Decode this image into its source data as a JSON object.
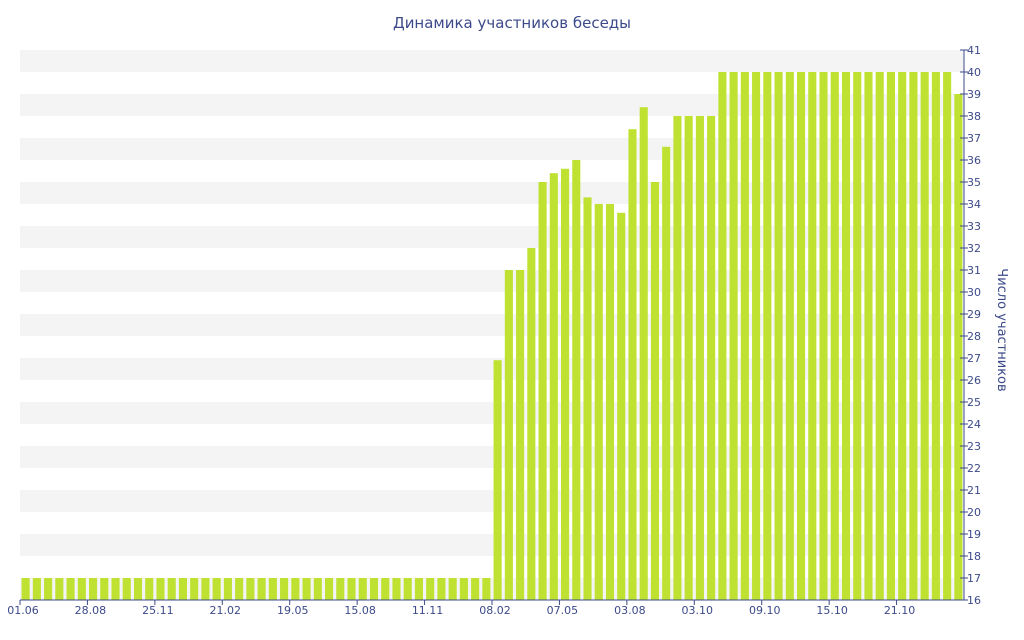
{
  "chart_data": {
    "type": "bar",
    "title": "Динамика участников беседы",
    "xlabel": "",
    "ylabel": "Число участников",
    "ylim": [
      16,
      41
    ],
    "yticks": [
      16,
      17,
      18,
      19,
      20,
      21,
      22,
      23,
      24,
      25,
      26,
      27,
      28,
      29,
      30,
      31,
      32,
      33,
      34,
      35,
      36,
      37,
      38,
      39,
      40,
      41
    ],
    "x_tick_labels": [
      "01.06",
      "28.08",
      "25.11",
      "21.02",
      "19.05",
      "15.08",
      "11.11",
      "08.02",
      "07.05",
      "03.08",
      "03.10",
      "09.10",
      "15.10",
      "21.10"
    ],
    "x_tick_bar_index": [
      0,
      6,
      12,
      18,
      24,
      30,
      36,
      42,
      48,
      54,
      60,
      66,
      72,
      78
    ],
    "grid": "horizontal bands",
    "bar_color": "#bee132",
    "axis_color": "#3c4a8a",
    "values": [
      17,
      17,
      17,
      17,
      17,
      17,
      17,
      17,
      17,
      17,
      17,
      17,
      17,
      17,
      17,
      17,
      17,
      17,
      17,
      17,
      17,
      17,
      17,
      17,
      17,
      17,
      17,
      17,
      17,
      17,
      17,
      17,
      17,
      17,
      17,
      17,
      17,
      17,
      17,
      17,
      17,
      17,
      26.9,
      31,
      31,
      32,
      35,
      35.4,
      35.6,
      36,
      34.3,
      34,
      34,
      33.6,
      37.4,
      38.4,
      35,
      36.6,
      38,
      38,
      38,
      38,
      40,
      40,
      40,
      40,
      40,
      40,
      40,
      40,
      40,
      40,
      40,
      40,
      40,
      40,
      40,
      40,
      40,
      40,
      40,
      40,
      40,
      39
    ]
  }
}
